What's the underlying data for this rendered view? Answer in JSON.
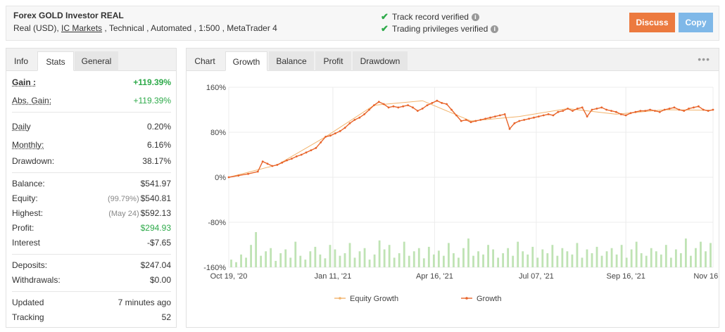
{
  "header": {
    "title": "Forex GOLD Investor REAL",
    "sub_prefix": "Real (USD), ",
    "broker": "IC Markets",
    "sub_suffix": " , Technical , Automated , 1:500 , MetaTrader 4",
    "verify1": "Track record verified",
    "verify2": "Trading privileges verified",
    "discuss": "Discuss",
    "copy": "Copy"
  },
  "left_tabs": [
    "Info",
    "Stats",
    "General"
  ],
  "stats": {
    "gain_label": "Gain :",
    "gain_value": "+119.39%",
    "abs_gain_label": "Abs. Gain:",
    "abs_gain_value": "+119.39%",
    "daily_label": "Daily",
    "daily_value": "0.20%",
    "monthly_label": "Monthly:",
    "monthly_value": "6.16%",
    "drawdown_label": "Drawdown:",
    "drawdown_value": "38.17%",
    "balance_label": "Balance:",
    "balance_value": "$541.97",
    "equity_label": "Equity:",
    "equity_pre": "(99.79%)",
    "equity_value": "$540.81",
    "highest_label": "Highest:",
    "highest_pre": "(May 24)",
    "highest_value": "$592.13",
    "profit_label": "Profit:",
    "profit_value": "$294.93",
    "interest_label": "Interest",
    "interest_value": "-$7.65",
    "deposits_label": "Deposits:",
    "deposits_value": "$247.04",
    "withdrawals_label": "Withdrawals:",
    "withdrawals_value": "$0.00",
    "updated_label": "Updated",
    "updated_value": "7 minutes ago",
    "tracking_label": "Tracking",
    "tracking_value": "52"
  },
  "chart_tabs": [
    "Chart",
    "Growth",
    "Balance",
    "Profit",
    "Drawdown"
  ],
  "chart_menu": "•••",
  "colors": {
    "line": "#e8642a",
    "bars": "#bfe3b4",
    "green": "#2eaa4a",
    "discuss": "#ec7a3f",
    "copy": "#7fb8e8"
  },
  "chart_data": {
    "type": "line",
    "y_ticks": [
      "160%",
      "80%",
      "0%",
      "-80%",
      "-160%"
    ],
    "ylim": [
      -160,
      160
    ],
    "x_ticks": [
      "Oct 19, '20",
      "Jan 11, '21",
      "Apr 16, '21",
      "Jul 07, '21",
      "Sep 16, '21",
      "Nov 16, '21"
    ],
    "series": [
      {
        "name": "Growth",
        "x": [
          0,
          2,
          4,
          6,
          7,
          8,
          9,
          10,
          11,
          12,
          13,
          14,
          15,
          16,
          17,
          18,
          19,
          20,
          21,
          22,
          23,
          24,
          25,
          26,
          27,
          28,
          29,
          30,
          31,
          32,
          33,
          34,
          35,
          36,
          37,
          38,
          39,
          40,
          41,
          42,
          43,
          44,
          45,
          46,
          47,
          48,
          49,
          50,
          51,
          52,
          53,
          54,
          55,
          56,
          57,
          58,
          59,
          60,
          61,
          62,
          63,
          64,
          65,
          66,
          67,
          68,
          69,
          70,
          71,
          72,
          73,
          74,
          75,
          76,
          77,
          78,
          79,
          80,
          81,
          82,
          83,
          84,
          85,
          86,
          87,
          88,
          89,
          90,
          91,
          92,
          93,
          94,
          95,
          96,
          97,
          98,
          99,
          100
        ],
        "y": [
          0,
          3,
          6,
          10,
          28,
          24,
          20,
          22,
          26,
          30,
          33,
          37,
          40,
          44,
          48,
          52,
          62,
          72,
          74,
          78,
          82,
          88,
          96,
          102,
          106,
          112,
          120,
          128,
          134,
          130,
          124,
          126,
          124,
          126,
          128,
          124,
          118,
          122,
          128,
          132,
          136,
          132,
          130,
          120,
          110,
          100,
          102,
          98,
          100,
          102,
          104,
          106,
          108,
          110,
          112,
          86,
          96,
          100,
          102,
          104,
          106,
          108,
          110,
          112,
          110,
          116,
          118,
          122,
          118,
          122,
          124,
          108,
          120,
          122,
          124,
          120,
          118,
          116,
          112,
          110,
          114,
          116,
          118,
          118,
          120,
          118,
          116,
          120,
          122,
          124,
          120,
          118,
          122,
          124,
          126,
          120,
          118,
          120
        ]
      },
      {
        "name": "Equity Growth",
        "x": [
          0,
          10,
          20,
          30,
          40,
          50,
          60,
          70,
          80,
          90,
          100
        ],
        "y": [
          0,
          22,
          72,
          128,
          136,
          100,
          108,
          122,
          112,
          120,
          119
        ]
      }
    ],
    "bars": [
      12,
      8,
      20,
      15,
      35,
      55,
      18,
      25,
      30,
      10,
      22,
      28,
      15,
      40,
      18,
      12,
      25,
      32,
      20,
      14,
      35,
      28,
      18,
      22,
      38,
      15,
      25,
      30,
      12,
      20,
      42,
      28,
      35,
      15,
      22,
      40,
      18,
      25,
      30,
      14,
      32,
      20,
      26,
      18,
      38,
      22,
      15,
      30,
      45,
      18,
      25,
      20,
      35,
      28,
      15,
      22,
      30,
      18,
      40,
      25,
      20,
      32,
      15,
      28,
      22,
      35,
      18,
      30,
      25,
      20,
      38,
      15,
      28,
      22,
      32,
      18,
      25,
      30,
      20,
      35,
      15,
      28,
      40,
      22,
      18,
      30,
      25,
      20,
      35,
      15,
      28,
      22,
      45,
      18,
      30,
      40,
      25,
      38
    ],
    "legend": [
      "Equity Growth",
      "Growth"
    ]
  }
}
